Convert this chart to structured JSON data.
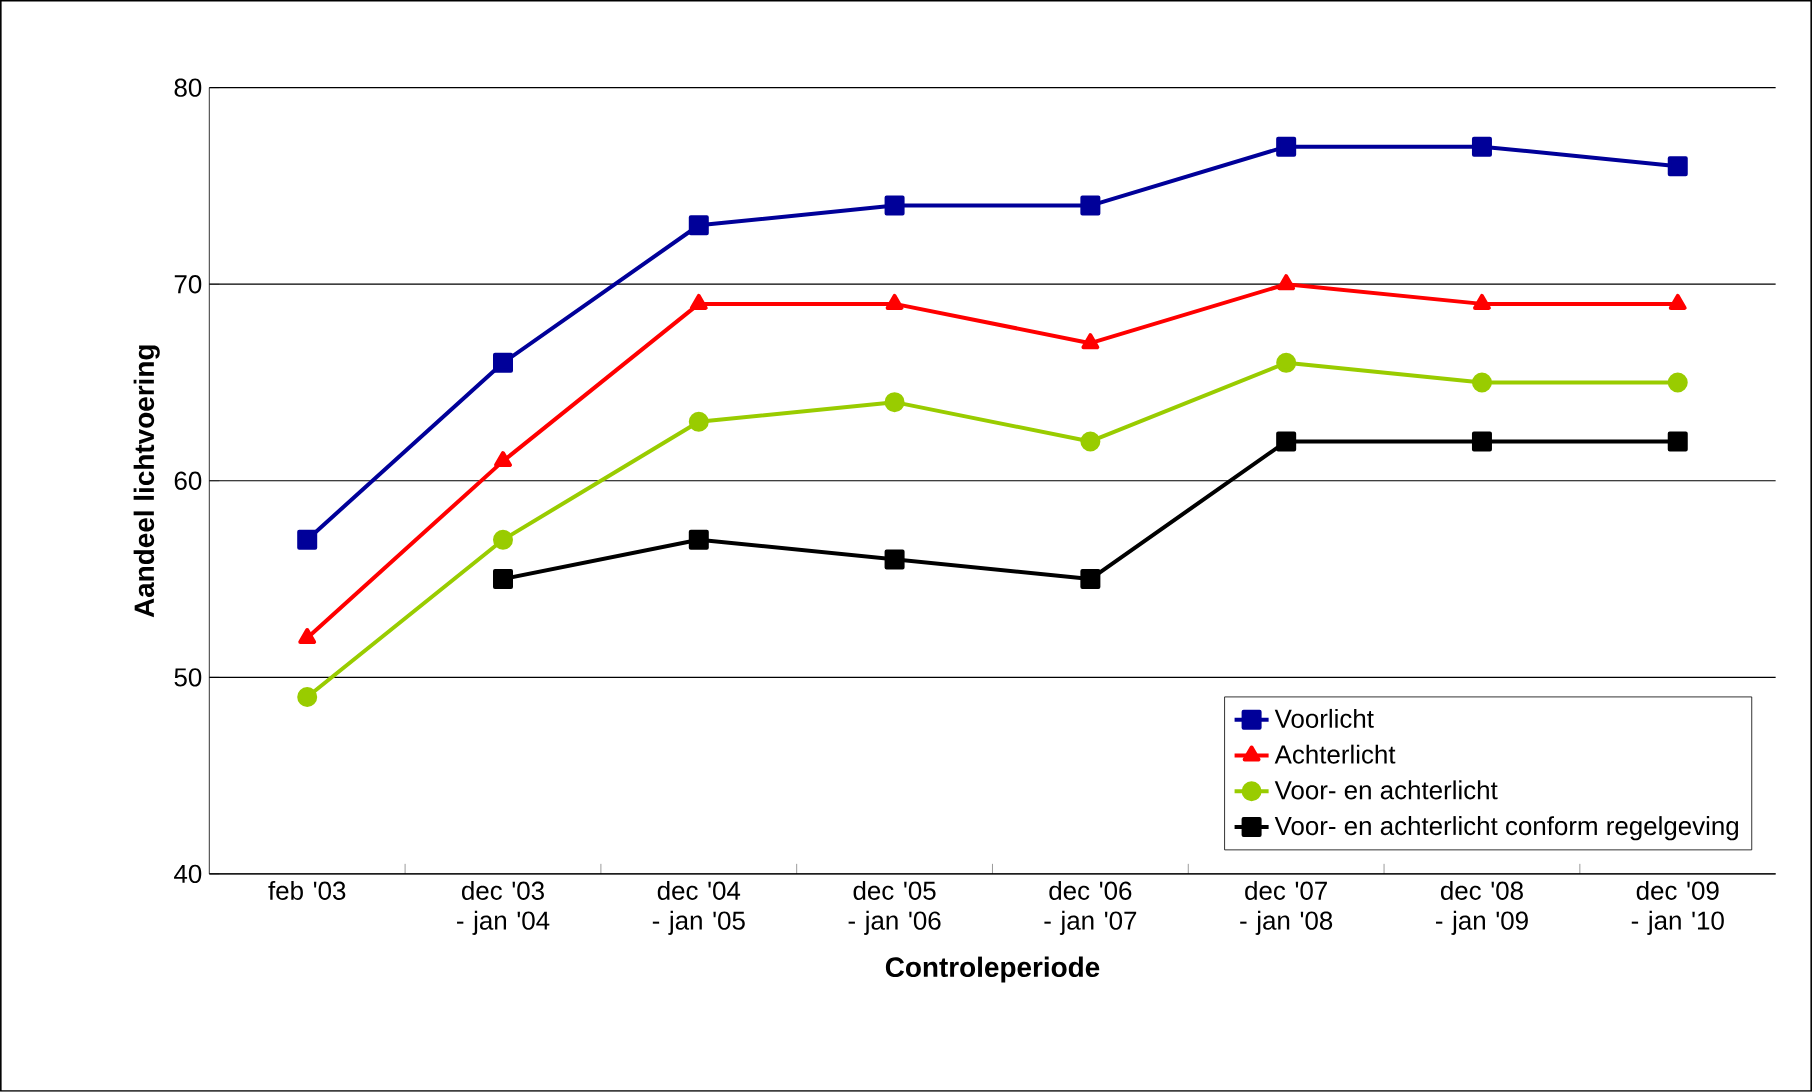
{
  "chart_data": {
    "type": "line",
    "xlabel": "Controleperiode",
    "ylabel": "Aandeel lichtvoering",
    "categories": [
      "feb '03",
      "dec '03 - jan '04",
      "dec '04 - jan '05",
      "dec '05 - jan '06",
      "dec '06 - jan '07",
      "dec '07 - jan '08",
      "dec '08 - jan '09",
      "dec '09 - jan '10"
    ],
    "series": [
      {
        "name": "Voorlicht",
        "color": "#000099",
        "marker": "square",
        "values": [
          57,
          66,
          73,
          74,
          74,
          77,
          77,
          76
        ]
      },
      {
        "name": "Achterlicht",
        "color": "#ff0000",
        "marker": "triangle",
        "values": [
          52,
          61,
          69,
          69,
          67,
          70,
          69,
          69
        ]
      },
      {
        "name": "Voor- en achterlicht",
        "color": "#99cc00",
        "marker": "circle",
        "values": [
          49,
          57,
          63,
          64,
          62,
          66,
          65,
          65
        ]
      },
      {
        "name": "Voor- en achterlicht conform regelgeving",
        "color": "#000000",
        "marker": "square",
        "values": [
          null,
          55,
          57,
          56,
          55,
          62,
          62,
          62
        ]
      }
    ],
    "ylim": [
      40,
      80
    ],
    "yticks": [
      40,
      50,
      60,
      70,
      80
    ],
    "grid": "y",
    "legend": "bottom right"
  }
}
